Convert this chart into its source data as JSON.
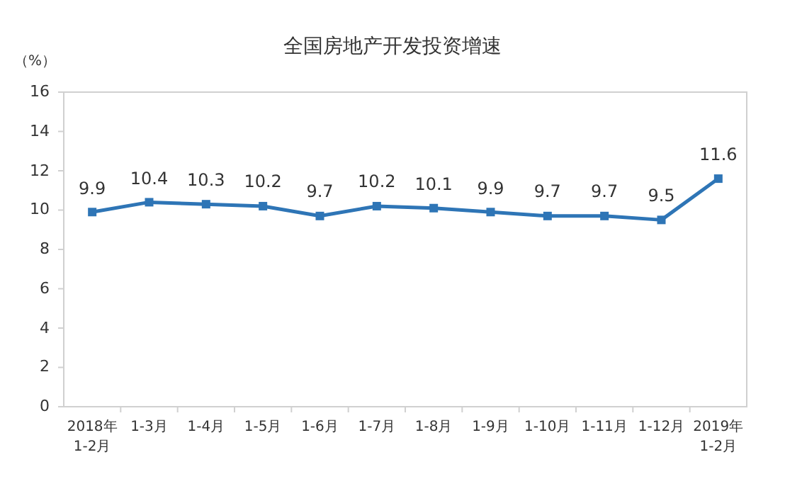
{
  "chart_data": {
    "type": "line",
    "title": "全国房地产开发投资增速",
    "ylabel": "（%）",
    "categories": [
      "2018年 1-2月",
      "1-3月",
      "1-4月",
      "1-5月",
      "1-6月",
      "1-7月",
      "1-8月",
      "1-9月",
      "1-10月",
      "1-11月",
      "1-12月",
      "2019年 1-2月"
    ],
    "series": [
      {
        "color": "#2e75b6",
        "values": [
          9.9,
          10.4,
          10.3,
          10.2,
          9.7,
          10.2,
          10.1,
          9.9,
          9.7,
          9.7,
          9.5,
          11.6
        ]
      }
    ],
    "ylim": [
      0,
      16
    ],
    "yticks": [
      0,
      2,
      4,
      6,
      8,
      10,
      12,
      14,
      16
    ],
    "data_labels": true,
    "marker": "square",
    "line_style": "solid"
  }
}
